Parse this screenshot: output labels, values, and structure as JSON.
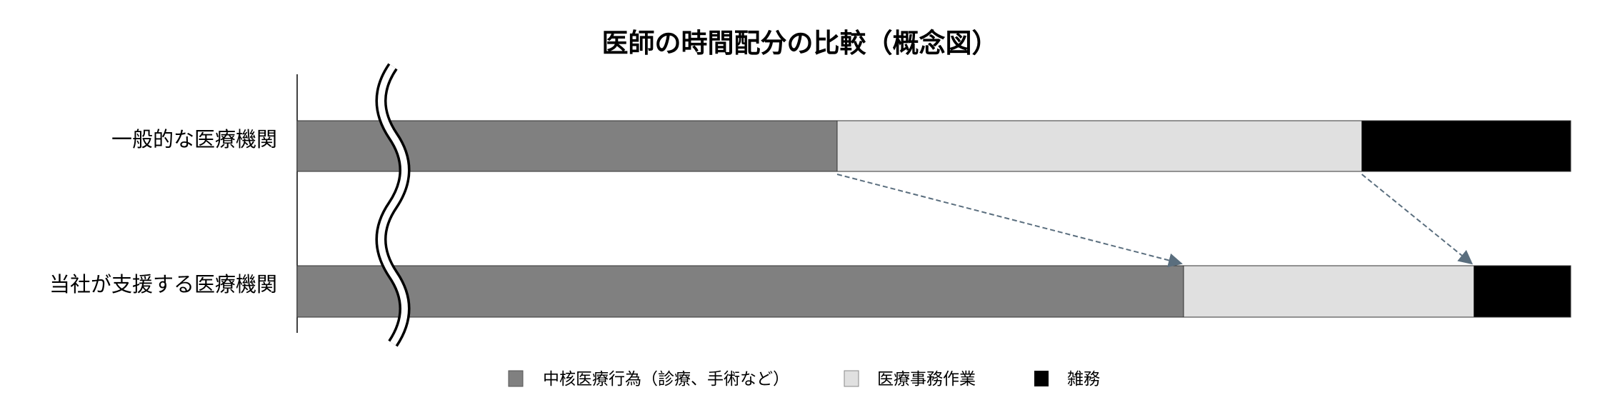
{
  "chart_data": {
    "type": "bar",
    "orientation": "horizontal",
    "stacked": true,
    "title": "医師の時間配分の比較（概念図）",
    "categories": [
      "一般的な医療機関",
      "当社が支援する医療機関"
    ],
    "unit": "percent share of bar length (approximate, conceptual)",
    "axis_break": true,
    "grid": false,
    "legend_position": "bottom",
    "series": [
      {
        "name": "中核医療行為（診療、手術など）",
        "color": "#808080",
        "values": [
          42.4,
          69.6
        ]
      },
      {
        "name": "医療事務作業",
        "color": "#e0e0e0",
        "values": [
          41.2,
          22.8
        ]
      },
      {
        "name": "雑務",
        "color": "#000000",
        "values": [
          16.4,
          7.6
        ]
      }
    ],
    "annotations": [
      {
        "type": "dashed-arrow",
        "from": "一般的な医療機関: end of 中核医療行為",
        "to": "当社が支援する医療機関: end of 中核医療行為",
        "color": "#5a6e7e"
      },
      {
        "type": "dashed-arrow",
        "from": "一般的な医療機関: end of 医療事務作業",
        "to": "当社が支援する医療機関: end of 医療事務作業",
        "color": "#5a6e7e"
      }
    ]
  }
}
